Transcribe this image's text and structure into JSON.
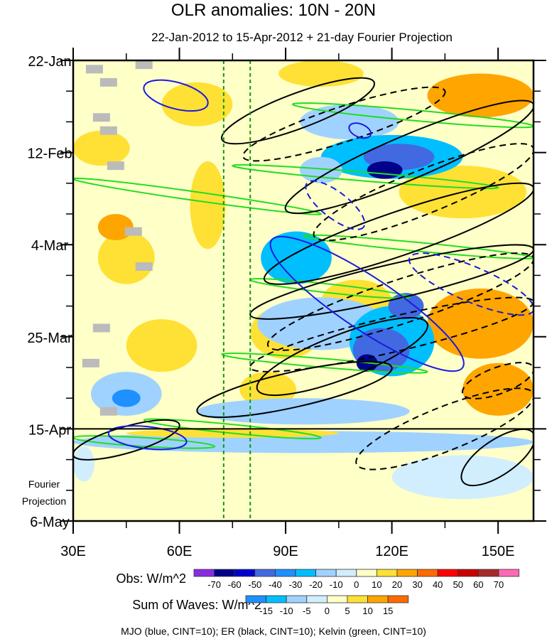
{
  "chart_data": {
    "type": "heatmap",
    "title": "OLR anomalies: 10N - 20N",
    "subtitle": "22-Jan-2012 to 15-Apr-2012 + 21-day Fourier Projection",
    "x_range": [
      30,
      160
    ],
    "x_ticks": [
      {
        "v": 30,
        "label": "30E"
      },
      {
        "v": 60,
        "label": "60E"
      },
      {
        "v": 90,
        "label": "90E"
      },
      {
        "v": 120,
        "label": "120E"
      },
      {
        "v": 150,
        "label": "150E"
      }
    ],
    "y_range_days": [
      0,
      105
    ],
    "y_ticks": [
      {
        "v": 0,
        "label": "22-Jan"
      },
      {
        "v": 21,
        "label": "12-Feb"
      },
      {
        "v": 42,
        "label": "4-Mar"
      },
      {
        "v": 63,
        "label": "25-Mar"
      },
      {
        "v": 84,
        "label": "15-Apr"
      },
      {
        "v": 105,
        "label": "6-May"
      }
    ],
    "projection_label": [
      "Fourier",
      "Projection"
    ],
    "projection_start_day": 84,
    "reference_lons": [
      72.5,
      80
    ],
    "obs_colorbar": {
      "label": "Obs: W/m^2",
      "levels": [
        "-70",
        "-60",
        "-50",
        "-40",
        "-30",
        "-20",
        "-10",
        "0",
        "10",
        "20",
        "30",
        "40",
        "50",
        "60",
        "70"
      ],
      "colors": [
        "#8a2be2",
        "#00008b",
        "#0000cd",
        "#4169e1",
        "#1e90ff",
        "#00bfff",
        "#a0d2ff",
        "#d1eeff",
        "#ffffc8",
        "#ffe135",
        "#ffa500",
        "#ff6a00",
        "#ff0000",
        "#c80000",
        "#a52a2a",
        "#ff69b4"
      ]
    },
    "waves_colorbar": {
      "label": "Sum of Waves: W/m^2",
      "levels": [
        "-15",
        "-10",
        "-5",
        "0",
        "5",
        "10",
        "15"
      ],
      "colors": [
        "#1e90ff",
        "#00bfff",
        "#a0d2ff",
        "#d1eeff",
        "#ffffc8",
        "#ffe135",
        "#ffa500",
        "#ff6a00"
      ]
    },
    "footer": "MJO (blue, CINT=10); ER (black, CINT=10); Kelvin (green, CINT=10)",
    "shading_patches": [
      {
        "lon": 45,
        "day": 45,
        "rl": 8,
        "rd": 6,
        "v": 15
      },
      {
        "lon": 42,
        "day": 38,
        "rl": 5,
        "rd": 3,
        "v": 25
      },
      {
        "lon": 65,
        "day": 10,
        "rl": 10,
        "rd": 5,
        "v": 15
      },
      {
        "lon": 38,
        "day": 20,
        "rl": 8,
        "rd": 4,
        "v": 15
      },
      {
        "lon": 68,
        "day": 33,
        "rl": 5,
        "rd": 10,
        "v": 15
      },
      {
        "lon": 55,
        "day": 65,
        "rl": 10,
        "rd": 6,
        "v": 15
      },
      {
        "lon": 90,
        "day": 62,
        "rl": 10,
        "rd": 6,
        "v": 15
      },
      {
        "lon": 140,
        "day": 30,
        "rl": 18,
        "rd": 6,
        "v": 15
      },
      {
        "lon": 145,
        "day": 8,
        "rl": 15,
        "rd": 5,
        "v": 20
      },
      {
        "lon": 100,
        "day": 3,
        "rl": 12,
        "rd": 3,
        "v": 15
      },
      {
        "lon": 145,
        "day": 60,
        "rl": 15,
        "rd": 8,
        "v": 20
      },
      {
        "lon": 150,
        "day": 75,
        "rl": 10,
        "rd": 6,
        "v": 25
      },
      {
        "lon": 110,
        "day": 55,
        "rl": 10,
        "rd": 5,
        "v": 15
      },
      {
        "lon": 85,
        "day": 75,
        "rl": 8,
        "rd": 4,
        "v": 15
      },
      {
        "lon": 108,
        "day": 14,
        "rl": 14,
        "rd": 4,
        "v": -15
      },
      {
        "lon": 120,
        "day": 22,
        "rl": 20,
        "rd": 5,
        "v": -25
      },
      {
        "lon": 122,
        "day": 22,
        "rl": 10,
        "rd": 3,
        "v": -45
      },
      {
        "lon": 118,
        "day": 25,
        "rl": 5,
        "rd": 2,
        "v": -65
      },
      {
        "lon": 93,
        "day": 45,
        "rl": 10,
        "rd": 6,
        "v": -25
      },
      {
        "lon": 100,
        "day": 60,
        "rl": 18,
        "rd": 6,
        "v": -15
      },
      {
        "lon": 120,
        "day": 64,
        "rl": 12,
        "rd": 8,
        "v": -30
      },
      {
        "lon": 117,
        "day": 66,
        "rl": 8,
        "rd": 5,
        "v": -50
      },
      {
        "lon": 113,
        "day": 69,
        "rl": 3,
        "rd": 2,
        "v": -65
      },
      {
        "lon": 124,
        "day": 56,
        "rl": 5,
        "rd": 3,
        "v": -45
      },
      {
        "lon": 100,
        "day": 25,
        "rl": 6,
        "rd": 3,
        "v": -15
      },
      {
        "lon": 45,
        "day": 76,
        "rl": 10,
        "rd": 5,
        "v": -15
      },
      {
        "lon": 45,
        "day": 77,
        "rl": 4,
        "rd": 2,
        "v": -35
      },
      {
        "lon": 95,
        "day": 80,
        "rl": 30,
        "rd": 3,
        "v": -15
      },
      {
        "lon": 95,
        "day": 87,
        "rl": 65,
        "rd": 2.5,
        "v": -12
      },
      {
        "lon": 75,
        "day": 85,
        "rl": 30,
        "rd": 1,
        "v": 15
      },
      {
        "lon": 80,
        "day": 98,
        "rl": 20,
        "rd": 3,
        "v": 5
      },
      {
        "lon": 75,
        "day": 93,
        "rl": 12,
        "rd": 2,
        "v": 5
      },
      {
        "lon": 140,
        "day": 95,
        "rl": 20,
        "rd": 5,
        "v": -5
      },
      {
        "lon": 33,
        "day": 92,
        "rl": 3,
        "rd": 4,
        "v": -5
      }
    ],
    "missing_lons_days": [
      [
        36,
        2
      ],
      [
        40,
        5
      ],
      [
        50,
        1
      ],
      [
        38,
        13
      ],
      [
        40,
        16
      ],
      [
        42,
        24
      ],
      [
        47,
        39
      ],
      [
        50,
        47
      ],
      [
        38,
        61
      ],
      [
        35,
        69
      ],
      [
        40,
        80
      ]
    ],
    "contours": {
      "er_positive": [
        [
          [
            72,
            18
          ],
          [
            115,
            5
          ],
          4
        ],
        [
          [
            90,
            34
          ],
          [
            160,
            10
          ],
          5
        ],
        [
          [
            84,
            50
          ],
          [
            160,
            29
          ],
          5
        ],
        [
          [
            80,
            58
          ],
          [
            160,
            43
          ],
          4
        ],
        [
          [
            82,
            75
          ],
          [
            130,
            60
          ],
          5
        ],
        [
          [
            65,
            80
          ],
          [
            120,
            70
          ],
          4
        ],
        [
          [
            30,
            90
          ],
          [
            60,
            83
          ],
          3
        ],
        [
          [
            140,
            96
          ],
          [
            160,
            85
          ],
          4
        ]
      ],
      "er_negative": [
        [
          [
            78,
            22
          ],
          [
            135,
            7
          ],
          4
        ],
        [
          [
            98,
            40
          ],
          [
            160,
            20
          ],
          5
        ],
        [
          [
            85,
            65
          ],
          [
            160,
            45
          ],
          5
        ],
        [
          [
            80,
            70
          ],
          [
            160,
            55
          ],
          4
        ],
        [
          [
            110,
            92
          ],
          [
            160,
            76
          ],
          5
        ],
        [
          [
            140,
            76
          ],
          [
            160,
            70
          ],
          3
        ]
      ],
      "mjo_positive": [
        [
          [
            50,
            6
          ],
          [
            68,
            10
          ],
          3
        ],
        [
          [
            86,
            41
          ],
          [
            140,
            70
          ],
          6
        ],
        [
          [
            108,
            15
          ],
          [
            114,
            17
          ],
          1.5
        ],
        [
          [
            40,
            85
          ],
          [
            62,
            87
          ],
          2.5
        ]
      ],
      "mjo_negative": [
        [
          [
            96,
            28
          ],
          [
            112,
            38
          ],
          3
        ],
        [
          [
            125,
            45
          ],
          [
            160,
            57
          ],
          4
        ]
      ],
      "kelvin": [
        [
          [
            30,
            27
          ],
          [
            100,
            35
          ],
          1
        ],
        [
          [
            92,
            10
          ],
          [
            160,
            15
          ],
          1.2
        ],
        [
          [
            75,
            24
          ],
          [
            150,
            29
          ],
          1
        ],
        [
          [
            95,
            40
          ],
          [
            160,
            45
          ],
          1
        ],
        [
          [
            80,
            50
          ],
          [
            125,
            54
          ],
          1
        ],
        [
          [
            50,
            82
          ],
          [
            100,
            86
          ],
          1
        ],
        [
          [
            72,
            67
          ],
          [
            130,
            71
          ],
          1
        ],
        [
          [
            30,
            86
          ],
          [
            70,
            88
          ],
          1
        ]
      ]
    }
  }
}
